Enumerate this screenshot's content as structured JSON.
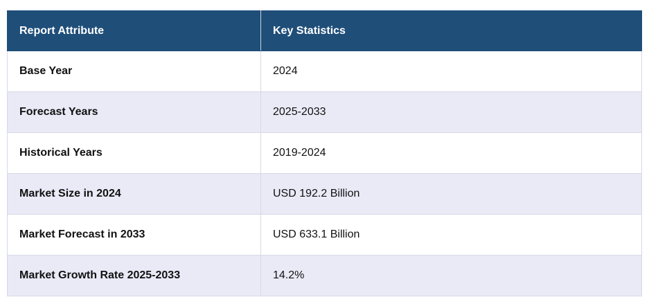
{
  "table": {
    "headers": [
      "Report Attribute",
      "Key Statistics"
    ],
    "rows": [
      {
        "attribute": "Base Year",
        "value": "2024"
      },
      {
        "attribute": "Forecast Years",
        "value": "2025-2033"
      },
      {
        "attribute": "Historical Years",
        "value": "2019-2024"
      },
      {
        "attribute": "Market Size in 2024",
        "value": "USD 192.2 Billion"
      },
      {
        "attribute": "Market Forecast in 2033",
        "value": "USD 633.1 Billion"
      },
      {
        "attribute": "Market Growth Rate 2025-2033",
        "value": "14.2%"
      }
    ],
    "colors": {
      "header_bg": "#1f4e79",
      "row_alt_bg": "#e9eaf6",
      "border": "#d6d9e6"
    }
  }
}
